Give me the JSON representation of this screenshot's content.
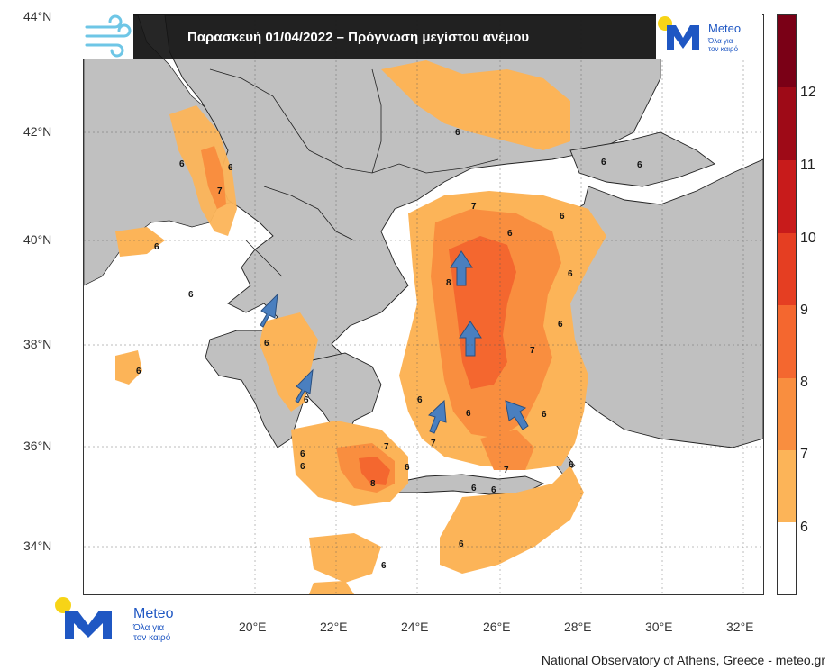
{
  "header": {
    "title": "Παρασκευή 01/04/2022 – Πρόγνωση μεγίστου ανέμου"
  },
  "logo": {
    "brand": "Meteo",
    "tagline_line1": "Όλα για",
    "tagline_line2": "τον καιρό"
  },
  "axes": {
    "lat_labels": [
      "44°N",
      "42°N",
      "40°N",
      "38°N",
      "36°N",
      "34°N"
    ],
    "lon_labels": [
      "20°E",
      "22°E",
      "24°E",
      "26°E",
      "28°E",
      "30°E",
      "32°E"
    ]
  },
  "colorbar": {
    "levels": [
      "6",
      "7",
      "8",
      "9",
      "10",
      "11",
      "12"
    ],
    "colors": [
      "#ffffff",
      "#fcb458",
      "#f98e3f",
      "#f4672f",
      "#e53e22",
      "#c81b1b",
      "#9e0a17",
      "#7a0016"
    ]
  },
  "map": {
    "land_color": "#c0c0c0",
    "sea_color": "#ffffff",
    "arrow_color": "#4a7fbf",
    "contour_labels": [
      "6",
      "6",
      "7",
      "6",
      "6",
      "6",
      "7",
      "7",
      "6",
      "6",
      "6",
      "6",
      "6",
      "6",
      "6",
      "6",
      "8",
      "6",
      "6",
      "6",
      "8",
      "7",
      "6",
      "6",
      "7",
      "6",
      "6",
      "6",
      "6",
      "6",
      "6",
      "7",
      "6"
    ]
  },
  "footer": {
    "credit": "National Observatory of Athens, Greece - meteo.gr"
  }
}
